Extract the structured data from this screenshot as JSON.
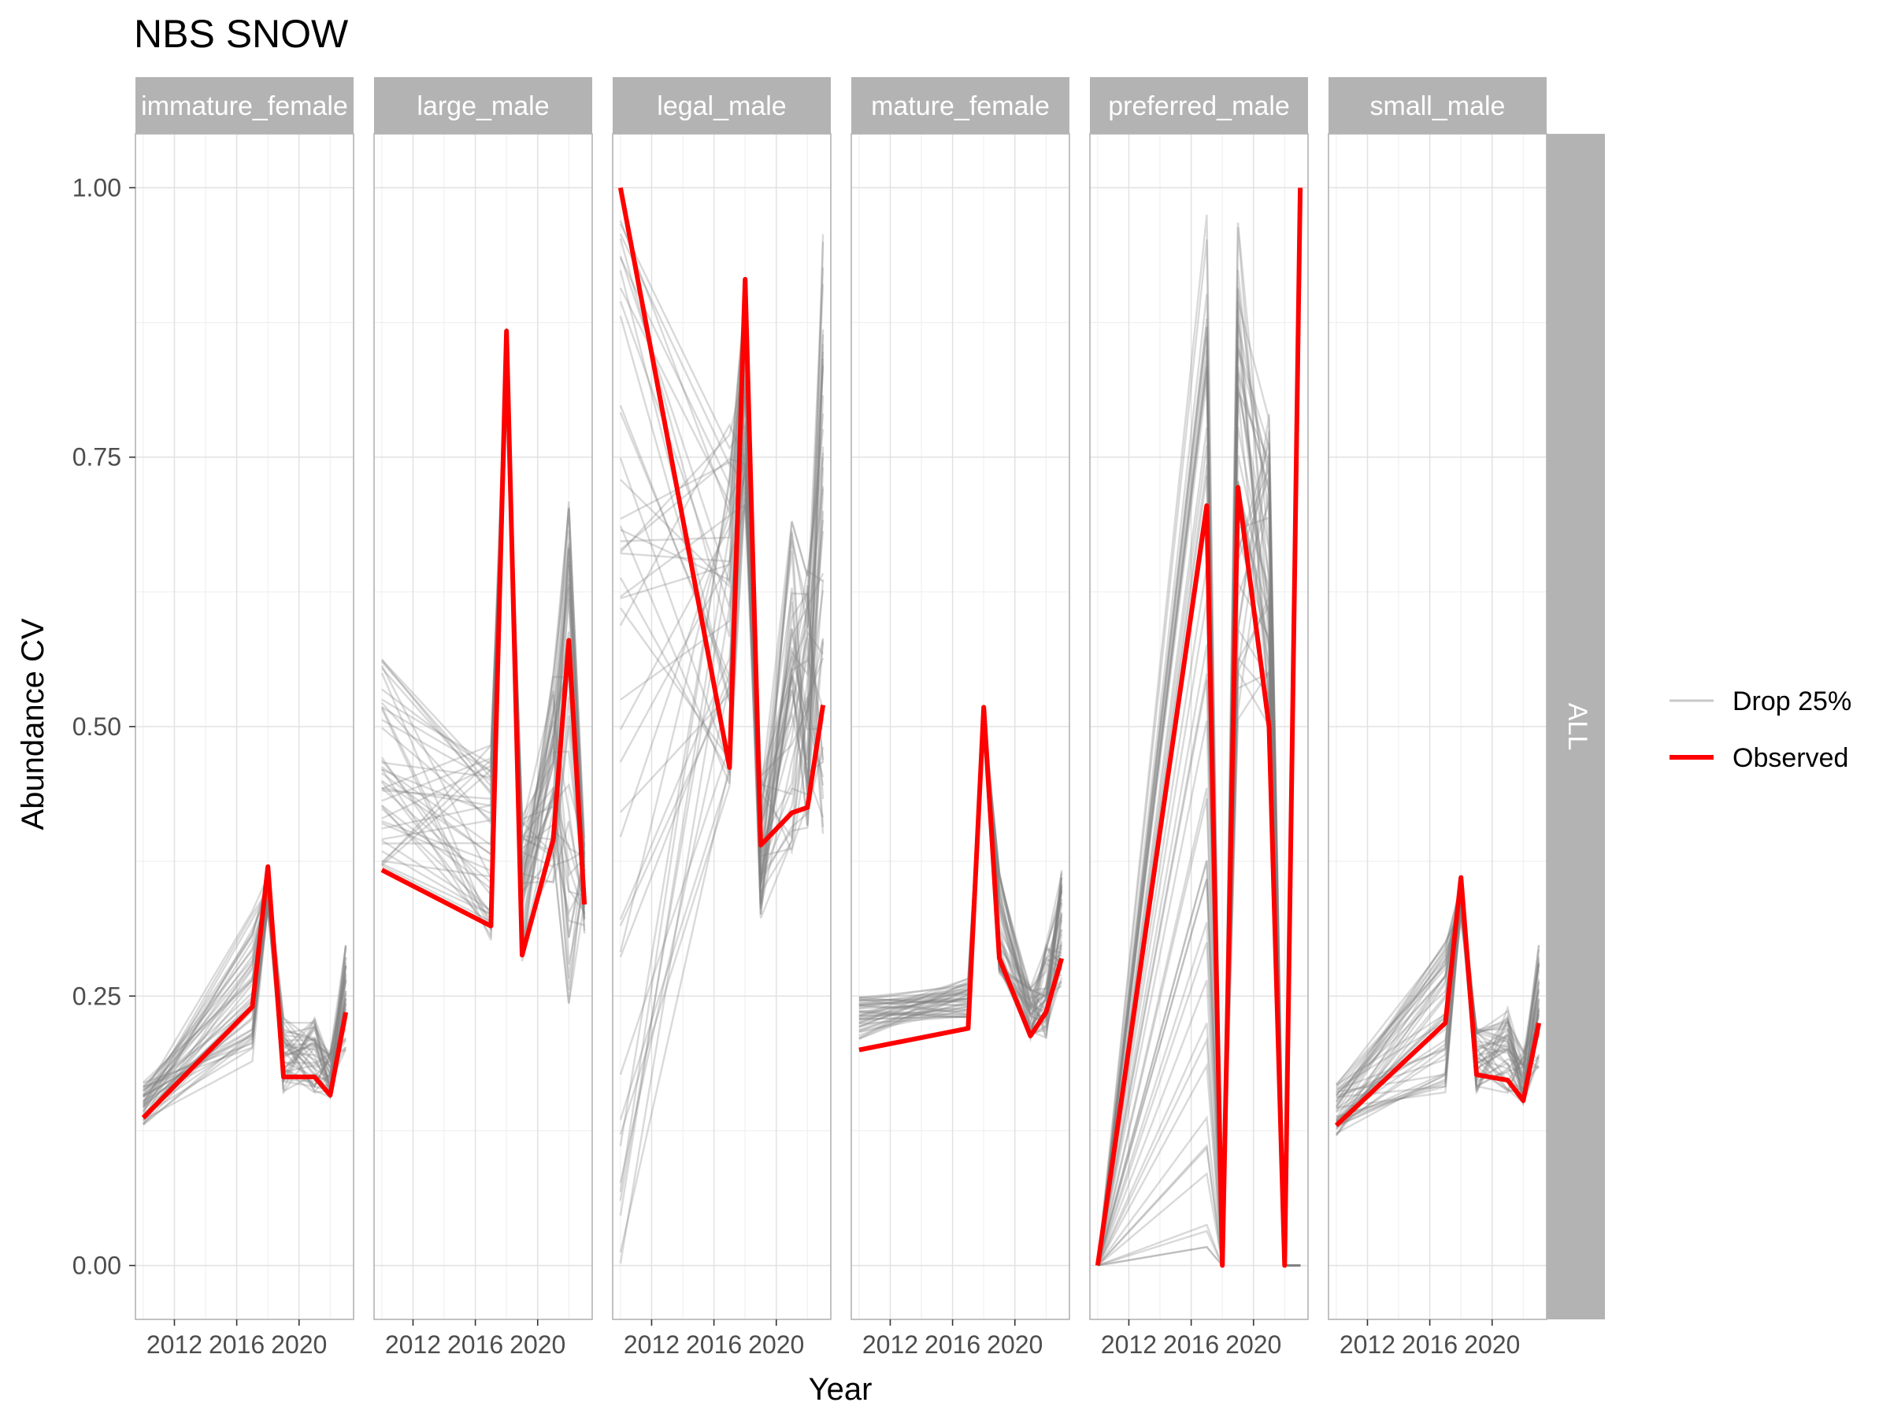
{
  "chart_data": {
    "type": "line",
    "title": "NBS SNOW",
    "xlabel": "Year",
    "ylabel": "Abundance CV",
    "xlim": [
      2009.5,
      2023.5
    ],
    "ylim": [
      -0.05,
      1.05
    ],
    "x_ticks": [
      2012,
      2016,
      2020
    ],
    "x_tick_labels": [
      "2012",
      "2016",
      "2020"
    ],
    "y_ticks": [
      0,
      0.25,
      0.5,
      0.75,
      1
    ],
    "y_tick_labels": [
      "0.00",
      "0.25",
      "0.50",
      "0.75",
      "1.00"
    ],
    "strip_right": "ALL",
    "grid": true,
    "legend": {
      "position": "right",
      "items": [
        {
          "label": "Drop 25%",
          "color": "#bdbdbd"
        },
        {
          "label": "Observed",
          "color": "#ff0000"
        }
      ]
    },
    "colors": {
      "observed": "#ff0000",
      "resample": "#808080",
      "strip_fill": "#b3b3b3",
      "strip_text": "#ffffff"
    },
    "panels": [
      {
        "label": "immature_female",
        "observed": {
          "x": [
            2010,
            2017,
            2018,
            2019,
            2021,
            2022,
            2023
          ],
          "y": [
            0.137,
            0.24,
            0.37,
            0.175,
            0.175,
            0.158,
            0.235
          ]
        },
        "resample_range": {
          "x": [
            2010,
            2017,
            2018,
            2019,
            2021,
            2022,
            2023
          ],
          "lo": [
            0.13,
            0.17,
            0.33,
            0.16,
            0.16,
            0.15,
            0.19
          ],
          "hi": [
            0.17,
            0.33,
            0.37,
            0.23,
            0.23,
            0.2,
            0.3
          ]
        }
      },
      {
        "label": "large_male",
        "observed": {
          "x": [
            2010,
            2017,
            2018,
            2019,
            2021,
            2022,
            2023
          ],
          "y": [
            0.367,
            0.315,
            0.867,
            0.288,
            0.395,
            0.58,
            0.335
          ]
        },
        "resample_range": {
          "x": [
            2010,
            2017,
            2018,
            2019,
            2021,
            2022,
            2023
          ],
          "lo": [
            0.37,
            0.3,
            0.8,
            0.28,
            0.35,
            0.24,
            0.3
          ],
          "hi": [
            0.575,
            0.49,
            0.87,
            0.42,
            0.55,
            0.72,
            0.4
          ]
        }
      },
      {
        "label": "legal_male",
        "observed": {
          "x": [
            2010,
            2017,
            2018,
            2019,
            2021,
            2022,
            2023
          ],
          "y": [
            1.0,
            0.462,
            0.915,
            0.39,
            0.42,
            0.425,
            0.52
          ]
        },
        "resample_range": {
          "x": [
            2010,
            2017,
            2018,
            2019,
            2021,
            2022,
            2023
          ],
          "lo": [
            0.0,
            0.44,
            0.7,
            0.32,
            0.38,
            0.4,
            0.4
          ],
          "hi": [
            1.0,
            0.8,
            0.915,
            0.47,
            0.7,
            0.65,
            1.0
          ]
        }
      },
      {
        "label": "mature_female",
        "observed": {
          "x": [
            2010,
            2017,
            2018,
            2019,
            2021,
            2022,
            2023
          ],
          "y": [
            0.2,
            0.22,
            0.518,
            0.285,
            0.213,
            0.235,
            0.285
          ]
        },
        "resample_range": {
          "x": [
            2010,
            2017,
            2018,
            2019,
            2021,
            2022,
            2023
          ],
          "lo": [
            0.21,
            0.23,
            0.49,
            0.27,
            0.21,
            0.21,
            0.25
          ],
          "hi": [
            0.25,
            0.27,
            0.52,
            0.37,
            0.26,
            0.3,
            0.37
          ]
        }
      },
      {
        "label": "preferred_male",
        "observed": {
          "x": [
            2010,
            2017,
            2018,
            2019,
            2021,
            2022,
            2023
          ],
          "y": [
            0.0,
            0.705,
            0.0,
            0.722,
            0.5,
            0.0,
            1.0
          ]
        },
        "resample_range": {
          "x": [
            2010,
            2017,
            2018,
            2019,
            2021,
            2022,
            2023
          ],
          "lo": [
            0.0,
            0.0,
            0.0,
            0.5,
            0.5,
            0.0,
            0.0
          ],
          "hi": [
            0.0,
            1.0,
            0.0,
            0.97,
            0.79,
            0.0,
            0.0
          ]
        }
      },
      {
        "label": "small_male",
        "observed": {
          "x": [
            2010,
            2017,
            2018,
            2019,
            2021,
            2022,
            2023
          ],
          "y": [
            0.13,
            0.225,
            0.36,
            0.177,
            0.172,
            0.153,
            0.225
          ]
        },
        "resample_range": {
          "x": [
            2010,
            2017,
            2018,
            2019,
            2021,
            2022,
            2023
          ],
          "lo": [
            0.12,
            0.16,
            0.32,
            0.16,
            0.16,
            0.15,
            0.18
          ],
          "hi": [
            0.17,
            0.31,
            0.36,
            0.22,
            0.24,
            0.2,
            0.3
          ]
        }
      }
    ]
  }
}
